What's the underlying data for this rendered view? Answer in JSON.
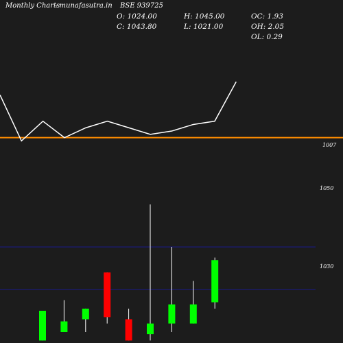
{
  "header": {
    "brand": "Monthly Charts",
    "site": "- munafasutra.in",
    "symbol": "BSE 939725"
  },
  "ohlc": {
    "open": "O: 1024.00",
    "close": "C: 1043.80",
    "high": "H: 1045.00",
    "low": "L: 1021.00",
    "oc": "OC: 1.93",
    "oh": "OH: 2.05",
    "ol": "OL: 0.29"
  },
  "colors": {
    "background": "#1c1c1c",
    "up": "#00ff00",
    "down": "#ff0000",
    "wick": "#ffffff",
    "line": "#ffffff",
    "reference_line": "#ff8c00",
    "grid": "#1a1a8c"
  },
  "chart_data": {
    "type": "candlestick",
    "price_panel": {
      "grid_labels": [
        "1050",
        "1030"
      ],
      "grid_values": [
        1050,
        1030
      ],
      "candles": [
        {
          "open": 1006,
          "close": 1020,
          "high": 1020,
          "low": 1006,
          "color": "up"
        },
        {
          "open": 1015,
          "close": 1010,
          "high": 1025,
          "low": 1010,
          "color": "up"
        },
        {
          "open": 1016,
          "close": 1021,
          "high": 1021,
          "low": 1010,
          "color": "up"
        },
        {
          "open": 1038,
          "close": 1017,
          "high": 1038,
          "low": 1014,
          "color": "down"
        },
        {
          "open": 1016,
          "close": 1006,
          "high": 1021,
          "low": 1006,
          "color": "down"
        },
        {
          "open": 1009,
          "close": 1014,
          "high": 1070,
          "low": 1006,
          "color": "up"
        },
        {
          "open": 1014,
          "close": 1023,
          "high": 1050,
          "low": 1010,
          "color": "up"
        },
        {
          "open": 1014,
          "close": 1023,
          "high": 1034,
          "low": 1014,
          "color": "up"
        },
        {
          "open": 1024,
          "close": 1043.8,
          "high": 1045,
          "low": 1021,
          "color": "up"
        }
      ]
    },
    "line_panel": {
      "label": "1007",
      "reference_value": 1007,
      "values": [
        1020,
        1006,
        1012,
        1007,
        1010,
        1012,
        1010,
        1008,
        1009,
        1011,
        1012,
        1024
      ]
    }
  }
}
